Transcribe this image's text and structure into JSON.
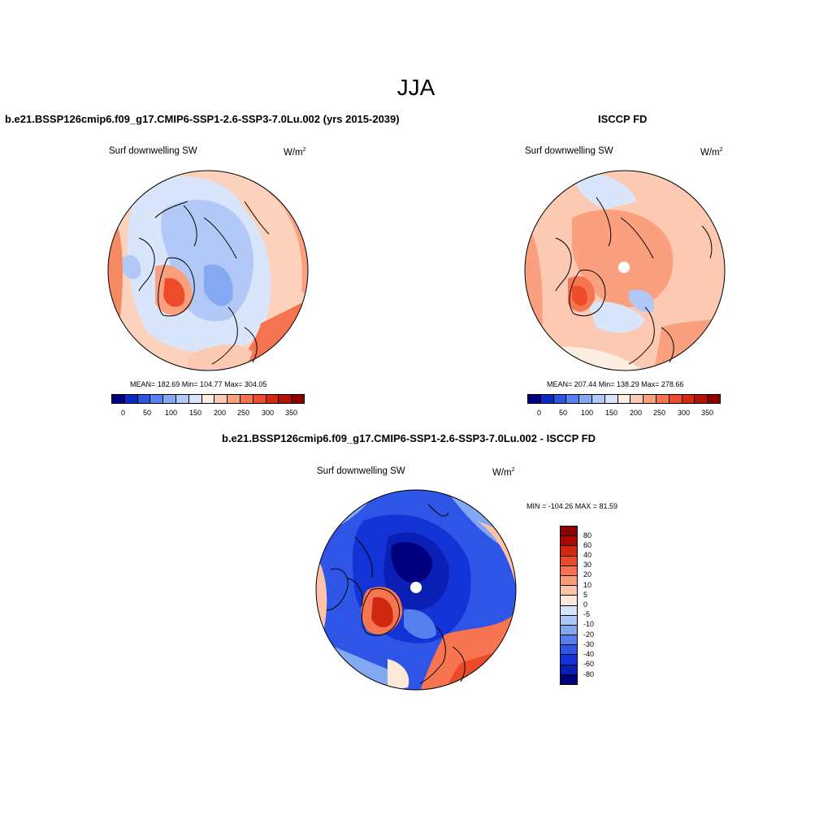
{
  "figure": {
    "title": "JJA",
    "units_label": "W/m",
    "units_exponent": "2"
  },
  "panel_model": {
    "title": "b.e21.BSSP126cmip6.f09_g17.CMIP6-SSP1-2.6-SSP3-7.0Lu.002 (yrs 2015-2039)",
    "variable": "Surf downwelling SW",
    "stats": "MEAN= 182.69  Min= 104.77  Max= 304.05",
    "colorbar_ticks": [
      "0",
      "50",
      "100",
      "150",
      "200",
      "250",
      "300",
      "350"
    ]
  },
  "panel_obs": {
    "title": "ISCCP FD",
    "variable": "Surf downwelling SW",
    "stats": "MEAN= 207.44  Min= 138.29  Max= 278.66",
    "colorbar_ticks": [
      "0",
      "50",
      "100",
      "150",
      "200",
      "250",
      "300",
      "350"
    ]
  },
  "panel_diff": {
    "title": "b.e21.BSSP126cmip6.f09_g17.CMIP6-SSP1-2.6-SSP3-7.0Lu.002 - ISCCP FD",
    "variable": "Surf downwelling SW",
    "stats": "MIN = -104.26 MAX =  81.59",
    "colorbar_labels": [
      "-80",
      "-60",
      "-40",
      "-30",
      "-20",
      "-10",
      "-5",
      "0",
      "5",
      "10",
      "20",
      "30",
      "40",
      "60",
      "80"
    ]
  },
  "colors": {
    "abs_scale": [
      "#00007f",
      "#0a2ac4",
      "#2b55e0",
      "#5582ee",
      "#86a9f3",
      "#b2c9f7",
      "#d8e5fb",
      "#fdeee2",
      "#fcc9b2",
      "#fba07e",
      "#f6744f",
      "#ec4c2a",
      "#d22a12",
      "#b21405",
      "#8b0000"
    ],
    "diff_scale": [
      "#00007f",
      "#0a20b4",
      "#1433d6",
      "#2e55e6",
      "#5580ee",
      "#82a7f3",
      "#adc6f7",
      "#d5e3fb",
      "#fde9da",
      "#fcc3a8",
      "#fb9c78",
      "#f6734e",
      "#eb4a28",
      "#cf2710",
      "#a80a02",
      "#8b0000"
    ]
  }
}
